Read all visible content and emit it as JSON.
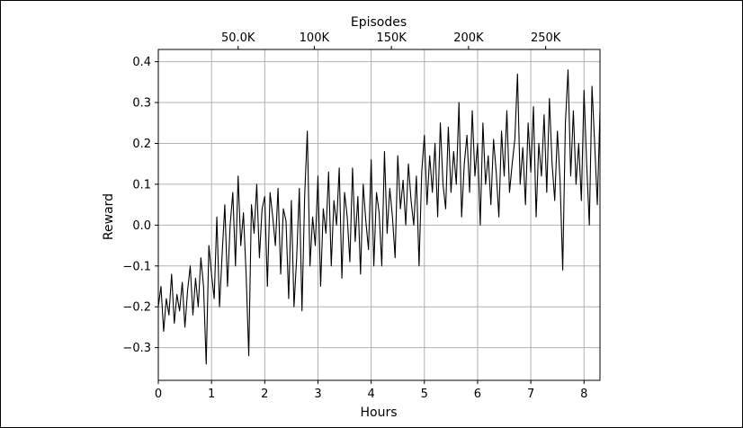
{
  "chart_data": {
    "type": "line",
    "xlabel": "Hours",
    "ylabel": "Reward",
    "top_xlabel": "Episodes",
    "xlim": [
      0,
      8.3
    ],
    "ylim": [
      -0.38,
      0.43
    ],
    "x_ticks": [
      0,
      1,
      2,
      3,
      4,
      5,
      6,
      7,
      8
    ],
    "x_tick_labels": [
      "0",
      "1",
      "2",
      "3",
      "4",
      "5",
      "6",
      "7",
      "8"
    ],
    "y_ticks": [
      -0.3,
      -0.2,
      -0.1,
      0.0,
      0.1,
      0.2,
      0.3,
      0.4
    ],
    "y_tick_labels": [
      "−0.3",
      "−0.2",
      "−0.1",
      "0.0",
      "0.1",
      "0.2",
      "0.3",
      "0.4"
    ],
    "top_x_ticks_hours": [
      1.5,
      2.93,
      4.38,
      5.83,
      7.28
    ],
    "top_x_tick_labels": [
      "50.0K",
      "100K",
      "150K",
      "200K",
      "250K"
    ],
    "grid": true,
    "line_color": "#000000",
    "grid_color": "#b0b0b0",
    "series": [
      {
        "x": [
          0,
          0.05,
          0.1,
          0.15,
          0.2,
          0.25,
          0.3,
          0.35,
          0.4,
          0.45,
          0.5,
          0.55,
          0.6,
          0.65,
          0.7,
          0.75,
          0.8,
          0.85,
          0.9,
          0.95,
          1.0,
          1.05,
          1.1,
          1.15,
          1.2,
          1.25,
          1.3,
          1.35,
          1.4,
          1.45,
          1.5,
          1.55,
          1.6,
          1.65,
          1.7,
          1.75,
          1.8,
          1.85,
          1.9,
          1.95,
          2.0,
          2.05,
          2.1,
          2.15,
          2.2,
          2.25,
          2.3,
          2.35,
          2.4,
          2.45,
          2.5,
          2.55,
          2.6,
          2.65,
          2.7,
          2.75,
          2.8,
          2.85,
          2.9,
          2.95,
          3.0,
          3.05,
          3.1,
          3.15,
          3.2,
          3.25,
          3.3,
          3.35,
          3.4,
          3.45,
          3.5,
          3.55,
          3.6,
          3.65,
          3.7,
          3.75,
          3.8,
          3.85,
          3.9,
          3.95,
          4.0,
          4.05,
          4.1,
          4.15,
          4.2,
          4.25,
          4.3,
          4.35,
          4.4,
          4.45,
          4.5,
          4.55,
          4.6,
          4.65,
          4.7,
          4.75,
          4.8,
          4.85,
          4.9,
          4.95,
          5.0,
          5.05,
          5.1,
          5.15,
          5.2,
          5.25,
          5.3,
          5.35,
          5.4,
          5.45,
          5.5,
          5.55,
          5.6,
          5.65,
          5.7,
          5.75,
          5.8,
          5.85,
          5.9,
          5.95,
          6.0,
          6.05,
          6.1,
          6.15,
          6.2,
          6.25,
          6.3,
          6.35,
          6.4,
          6.45,
          6.5,
          6.55,
          6.6,
          6.65,
          6.7,
          6.75,
          6.8,
          6.85,
          6.9,
          6.95,
          7.0,
          7.05,
          7.1,
          7.15,
          7.2,
          7.25,
          7.3,
          7.35,
          7.4,
          7.45,
          7.5,
          7.55,
          7.6,
          7.65,
          7.7,
          7.75,
          7.8,
          7.85,
          7.9,
          7.95,
          8.0,
          8.05,
          8.1,
          8.15,
          8.2,
          8.25,
          8.3
        ],
        "y": [
          -0.2,
          -0.15,
          -0.26,
          -0.18,
          -0.22,
          -0.12,
          -0.24,
          -0.17,
          -0.21,
          -0.14,
          -0.25,
          -0.16,
          -0.1,
          -0.22,
          -0.13,
          -0.2,
          -0.08,
          -0.15,
          -0.34,
          -0.05,
          -0.12,
          -0.18,
          0.02,
          -0.2,
          -0.07,
          0.05,
          -0.15,
          0.0,
          0.08,
          -0.1,
          0.12,
          -0.05,
          0.03,
          -0.12,
          -0.32,
          0.05,
          -0.02,
          0.1,
          -0.08,
          0.04,
          0.07,
          -0.15,
          0.08,
          0.02,
          -0.05,
          0.09,
          -0.12,
          0.04,
          0.01,
          -0.18,
          0.06,
          -0.2,
          -0.08,
          0.09,
          -0.21,
          0.07,
          0.23,
          -0.1,
          0.02,
          -0.05,
          0.12,
          -0.15,
          0.04,
          -0.02,
          0.13,
          -0.1,
          0.06,
          0.0,
          0.14,
          -0.13,
          0.08,
          0.02,
          -0.09,
          0.14,
          -0.04,
          0.07,
          -0.12,
          0.1,
          0.01,
          -0.06,
          0.16,
          -0.1,
          0.08,
          0.03,
          -0.1,
          0.18,
          -0.02,
          0.09,
          0.02,
          -0.08,
          0.17,
          0.04,
          0.11,
          0.0,
          0.15,
          0.06,
          0.0,
          0.12,
          -0.1,
          0.13,
          0.22,
          0.05,
          0.17,
          0.08,
          0.2,
          0.02,
          0.25,
          0.1,
          0.04,
          0.24,
          0.08,
          0.18,
          0.1,
          0.3,
          0.02,
          0.15,
          0.22,
          0.08,
          0.28,
          0.12,
          0.2,
          0.0,
          0.25,
          0.1,
          0.17,
          0.05,
          0.21,
          0.13,
          0.02,
          0.23,
          0.12,
          0.28,
          0.08,
          0.15,
          0.21,
          0.37,
          0.1,
          0.19,
          0.05,
          0.25,
          0.13,
          0.29,
          0.02,
          0.2,
          0.12,
          0.27,
          0.08,
          0.31,
          0.15,
          0.06,
          0.23,
          0.11,
          -0.11,
          0.25,
          0.38,
          0.12,
          0.28,
          0.1,
          0.2,
          0.06,
          0.33,
          0.15,
          0.0,
          0.34,
          0.2,
          0.05,
          0.28
        ]
      }
    ]
  }
}
